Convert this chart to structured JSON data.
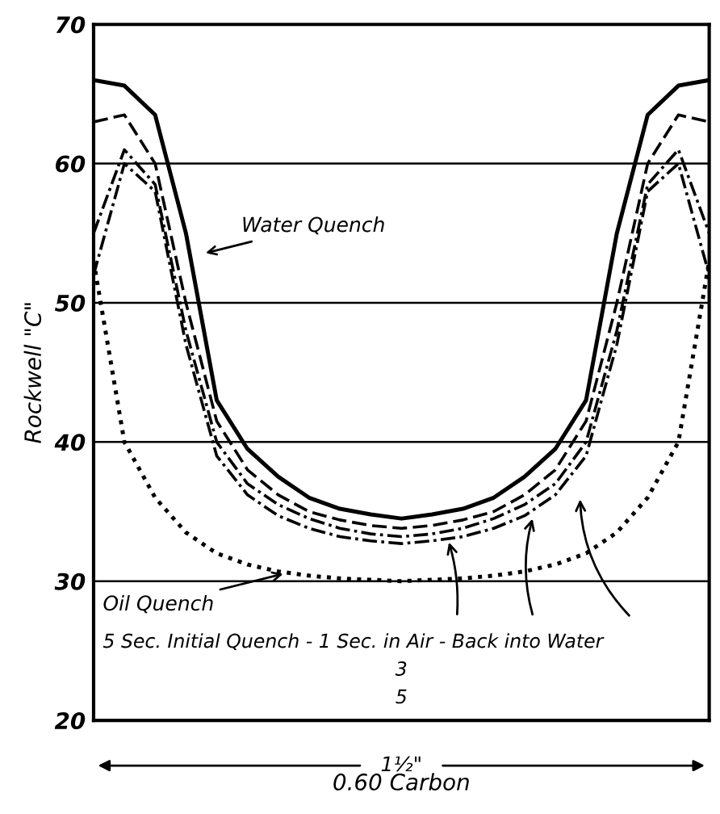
{
  "chart_data": {
    "type": "line",
    "categories": [
      null,
      null,
      null,
      null,
      null,
      null,
      null,
      null,
      null,
      null,
      null,
      null,
      null,
      null,
      null,
      null,
      null,
      null,
      null,
      null,
      null
    ],
    "series": [
      {
        "name": "Water Quench",
        "color": "#000000",
        "line_style": "solid",
        "values": [
          66,
          65.6,
          63.5,
          55,
          43,
          39.5,
          37.5,
          36,
          35.2,
          34.8,
          34.5,
          34.8,
          35.2,
          36,
          37.5,
          39.5,
          43,
          55,
          63.5,
          65.6,
          66
        ]
      },
      {
        "color": "#000000",
        "line_style": "dashed",
        "values": [
          63,
          63.5,
          60,
          50,
          41.5,
          38,
          36.2,
          35,
          34.4,
          34,
          33.8,
          34,
          34.4,
          35,
          36.2,
          38,
          41.5,
          50,
          60,
          63.5,
          63
        ]
      },
      {
        "color": "#000000",
        "line_style": "dashdot",
        "values": [
          55,
          61,
          58.5,
          48,
          40,
          37,
          35.5,
          34.5,
          33.8,
          33.4,
          33.2,
          33.4,
          33.8,
          34.5,
          35.5,
          37,
          40,
          48,
          58.5,
          61,
          55
        ]
      },
      {
        "color": "#000000",
        "line_style": "dashdot",
        "values": [
          52,
          60,
          58,
          47,
          39,
          36.2,
          34.7,
          33.8,
          33.2,
          32.9,
          32.7,
          32.9,
          33.2,
          33.8,
          34.7,
          36.2,
          39,
          47,
          58,
          60,
          52
        ]
      },
      {
        "name": "Oil Quench",
        "color": "#000000",
        "line_style": "dotted",
        "values": [
          53,
          40,
          36,
          33.5,
          32,
          31.2,
          30.7,
          30.4,
          30.2,
          30.1,
          30,
          30.1,
          30.2,
          30.4,
          30.7,
          31.2,
          32,
          33.5,
          36,
          40,
          53
        ]
      }
    ],
    "ylabel": "Rockwell \"C\"",
    "xlabel": "0.60 Carbon",
    "annotations": [
      "5 Sec. Initial Quench - 1 Sec. in Air - Back into Water",
      "3",
      "5",
      "1½\""
    ],
    "ylim": [
      20,
      70
    ],
    "yticks": [
      20,
      30,
      40,
      50,
      60,
      70
    ],
    "grid": "y",
    "marker": "none",
    "legend": false
  }
}
